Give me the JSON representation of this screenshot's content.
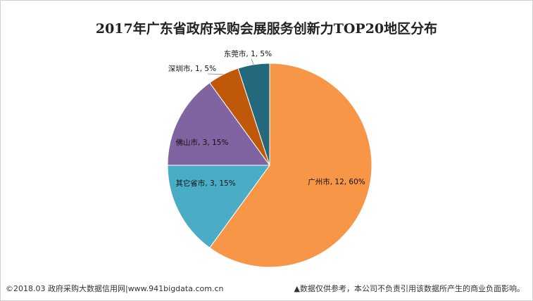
{
  "chart_data": {
    "type": "pie",
    "title": "2017年广东省政府采购会展服务创新力TOP20地区分布",
    "slices": [
      {
        "name": "广州市",
        "value": 12,
        "percent": "60%",
        "color": "#F79646",
        "label": "广州市, 12, 60%"
      },
      {
        "name": "其它省市",
        "value": 3,
        "percent": "15%",
        "color": "#4BACC6",
        "label": "其它省市, 3, 15%"
      },
      {
        "name": "佛山市",
        "value": 3,
        "percent": "15%",
        "color": "#8064A2",
        "label": "佛山市, 3, 15%"
      },
      {
        "name": "深圳市",
        "value": 1,
        "percent": "5%",
        "color": "#C0580A",
        "label": "深圳市, 1, 5%"
      },
      {
        "name": "东莞市",
        "value": 1,
        "percent": "5%",
        "color": "#24687B",
        "label": "东莞市, 1, 5%"
      }
    ]
  },
  "footer": {
    "left": "©2018.03 政府采购大数据信用网|www.941bigdata.com.cn",
    "right": "▲数据仅供参考，本公司不负责引用该数据所产生的商业负面影响。"
  }
}
